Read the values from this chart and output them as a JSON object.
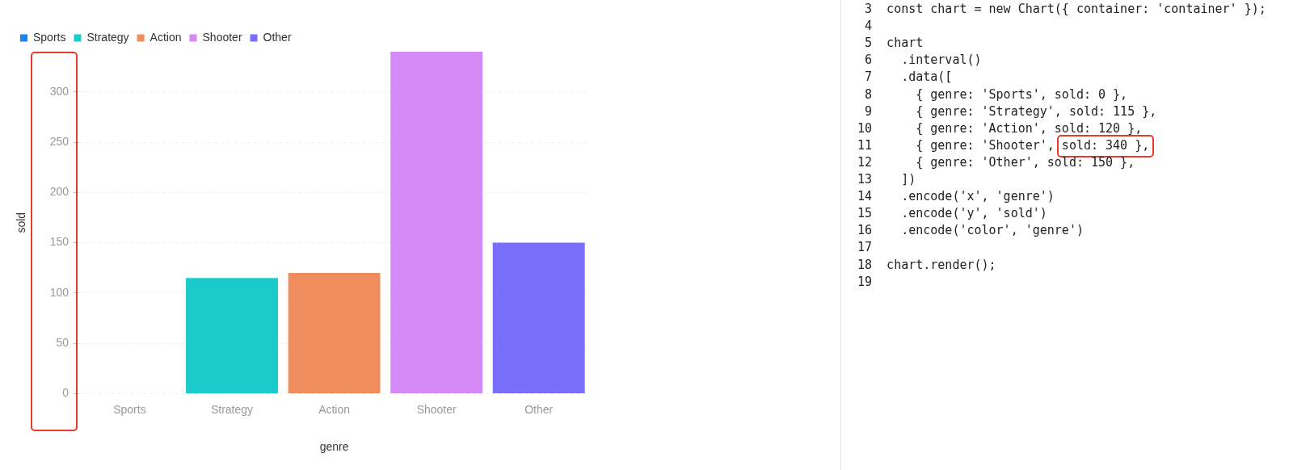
{
  "chart_data": [
    {
      "type": "bar",
      "categories": [
        "Sports",
        "Strategy",
        "Action",
        "Shooter",
        "Other"
      ],
      "series": [
        {
          "name": "Sports",
          "color": "#1783ff",
          "values": [
            0,
            null,
            null,
            null,
            null
          ]
        },
        {
          "name": "Strategy",
          "color": "#1bcbcc",
          "values": [
            null,
            115,
            null,
            null,
            null
          ]
        },
        {
          "name": "Action",
          "color": "#ef8d5d",
          "values": [
            null,
            null,
            120,
            null,
            null
          ]
        },
        {
          "name": "Shooter",
          "color": "#d58af7",
          "values": [
            null,
            null,
            null,
            340,
            null
          ]
        },
        {
          "name": "Other",
          "color": "#7a6ffc",
          "values": [
            null,
            null,
            null,
            null,
            150
          ]
        }
      ],
      "ylim": [
        0,
        340
      ],
      "yticks": [
        0,
        50,
        100,
        150,
        200,
        250,
        300
      ],
      "xlabel": "genre",
      "ylabel": "sold",
      "grid": "y",
      "legend": "top left"
    },
    {
      "type": "other",
      "annotations": [
        "3\tconst chart = new Chart({ container: 'container' });",
        "4\t",
        "5\tchart",
        "6\t  .interval()",
        "7\t  .data([",
        "8\t    { genre: 'Sports', sold: 0 },",
        "9\t    { genre: 'Strategy', sold: 115 },",
        "10\t    { genre: 'Action', sold: 120 },",
        "11\t    { genre: 'Shooter', sold: 340 },",
        "12\t    { genre: 'Other', sold: 150 },",
        "13\t  ])",
        "14\t  .encode('x', 'genre')",
        "15\t  .encode('y', 'sold')",
        "16\t  .encode('color', 'genre')",
        "17\t",
        "18\tchart.render();",
        "19\t"
      ]
    }
  ]
}
